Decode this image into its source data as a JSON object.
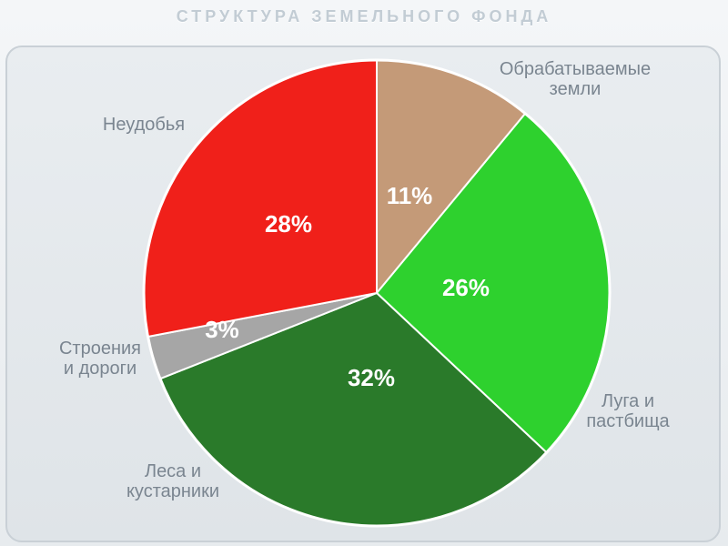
{
  "title": "СТРУКТУРА ЗЕМЕЛЬНОГО ФОНДА",
  "chart_data": {
    "type": "pie",
    "title": "СТРУКТУРА ЗЕМЕЛЬНОГО ФОНДА",
    "categories": [
      "Обрабатываемые земли",
      "Луга и пастбища",
      "Леса и кустарники",
      "Строения и дороги",
      "Неудобья"
    ],
    "category_lines": [
      [
        "Обрабатываемые",
        "земли"
      ],
      [
        "Луга и",
        "пастбища"
      ],
      [
        "Леса и",
        "кустарники"
      ],
      [
        "Строения",
        "и дороги"
      ],
      [
        "Неудобья"
      ]
    ],
    "values": [
      11,
      26,
      32,
      3,
      28
    ],
    "value_labels": [
      "11%",
      "26%",
      "32%",
      "3%",
      "28%"
    ],
    "colors": [
      "#c49a78",
      "#2ed12e",
      "#2a7a2a",
      "#a6a6a6",
      "#f0201a"
    ],
    "legend": "none"
  }
}
